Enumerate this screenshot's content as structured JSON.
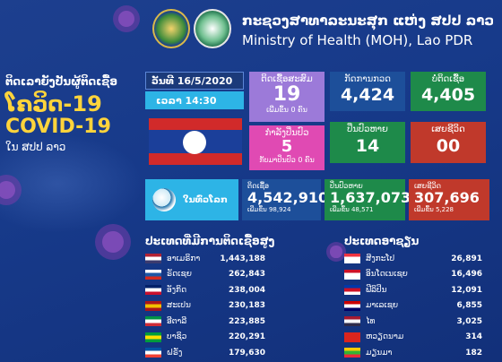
{
  "header": {
    "title_lao": "ກະຊວງສາທາລະນະສຸກ ແຫ່ງ ສປປ ລາວ",
    "title_en": "Ministry of Health (MOH), Lao PDR"
  },
  "left_heading": {
    "line1": "ຕິດເລາຍັງປັນຜູ້ຕິດເຊື້ອ",
    "line2": "ໂຄວິດ-19",
    "line3": "COVID-19",
    "line4": "ໃນ ສປປ ລາວ"
  },
  "date": "ວັນທີ 16/5/2020",
  "time": "ເວລາ 14:30",
  "cards": {
    "total": {
      "label": "ຕິດເຊື້ອສະສົມ",
      "value": "19",
      "sub": "ເພີ່ມຂຶ້ນ 0 ຄົນ"
    },
    "suspected": {
      "label": "ກຳລັງປິ່ນປົວ",
      "value": "5",
      "sub": "ກັບມາປິ່ນປົວ 0 ຄົນ"
    },
    "tested": {
      "label": "ກັດການກວດ",
      "value": "4,424"
    },
    "negative": {
      "label": "ບໍ່ຕິດເຊື້ອ",
      "value": "4,405"
    },
    "recovered": {
      "label": "ປິ່ນປົວຫາຍ",
      "value": "14"
    },
    "deaths": {
      "label": "ເສຍຊີວິດ",
      "value": "00"
    }
  },
  "world": {
    "label": "ໃນທົ່ວໂລກ",
    "infected": {
      "label": "ຕິດເຊື້ອ",
      "value": "4,542,910",
      "sub": "ເພີ່ມຂຶ້ນ 98,924"
    },
    "recovered": {
      "label": "ປິ່ນປົວຫາຍ",
      "value": "1,637,073",
      "sub": "ເພີ່ມຂຶ້ນ 48,571"
    },
    "deaths": {
      "label": "ເສຍຊີວິດ",
      "value": "307,696",
      "sub": "ເພີ່ມຂຶ້ນ 5,228"
    }
  },
  "section_left_title": "ປະເທດທີ່ມີການຕິດເຊື້ອສູງ",
  "section_right_title": "ປະເທດອາຊຽນ",
  "top_countries": [
    {
      "name": "ອາເມຣິກາ",
      "value": "1,443,188",
      "c1": "#b22234",
      "c2": "#ffffff",
      "c3": "#3c3b6e"
    },
    {
      "name": "ຣັດເຊຍ",
      "value": "262,843",
      "c1": "#ffffff",
      "c2": "#1c57a5",
      "c3": "#d52b1e"
    },
    {
      "name": "ອັງກິດ",
      "value": "238,004",
      "c1": "#012169",
      "c2": "#ffffff",
      "c3": "#c8102e"
    },
    {
      "name": "ສະເປນ",
      "value": "230,183",
      "c1": "#aa151b",
      "c2": "#f1bf00",
      "c3": "#aa151b"
    },
    {
      "name": "ອີຕາລີ",
      "value": "223,885",
      "c1": "#009246",
      "c2": "#ffffff",
      "c3": "#ce2b37"
    },
    {
      "name": "ບາຊິວ",
      "value": "220,291",
      "c1": "#009c3b",
      "c2": "#ffdf00",
      "c3": "#009c3b"
    },
    {
      "name": "ຝຣັ່ງ",
      "value": "179,630",
      "c1": "#0055a4",
      "c2": "#ffffff",
      "c3": "#ef4135"
    }
  ],
  "asean": [
    {
      "name": "ສິງກະໂປ",
      "value": "26,891",
      "c1": "#ef3340",
      "c2": "#ffffff",
      "c3": "#ffffff"
    },
    {
      "name": "ອິນໂດເນເຊຍ",
      "value": "16,496",
      "c1": "#ce1126",
      "c2": "#ffffff",
      "c3": "#ffffff"
    },
    {
      "name": "ຟີລິປິນ",
      "value": "12,091",
      "c1": "#0038a8",
      "c2": "#ce1126",
      "c3": "#ffffff"
    },
    {
      "name": "ມາເລເຊຍ",
      "value": "6,855",
      "c1": "#cc0001",
      "c2": "#ffffff",
      "c3": "#010066"
    },
    {
      "name": "ໄທ",
      "value": "3,025",
      "c1": "#a51931",
      "c2": "#f4f5f8",
      "c3": "#2d2a4a"
    },
    {
      "name": "ຫວຽດນາມ",
      "value": "314",
      "c1": "#da251d",
      "c2": "#da251d",
      "c3": "#da251d"
    },
    {
      "name": "ມຽນມາ",
      "value": "182",
      "c1": "#fecb00",
      "c2": "#34b233",
      "c3": "#ea2839"
    }
  ]
}
